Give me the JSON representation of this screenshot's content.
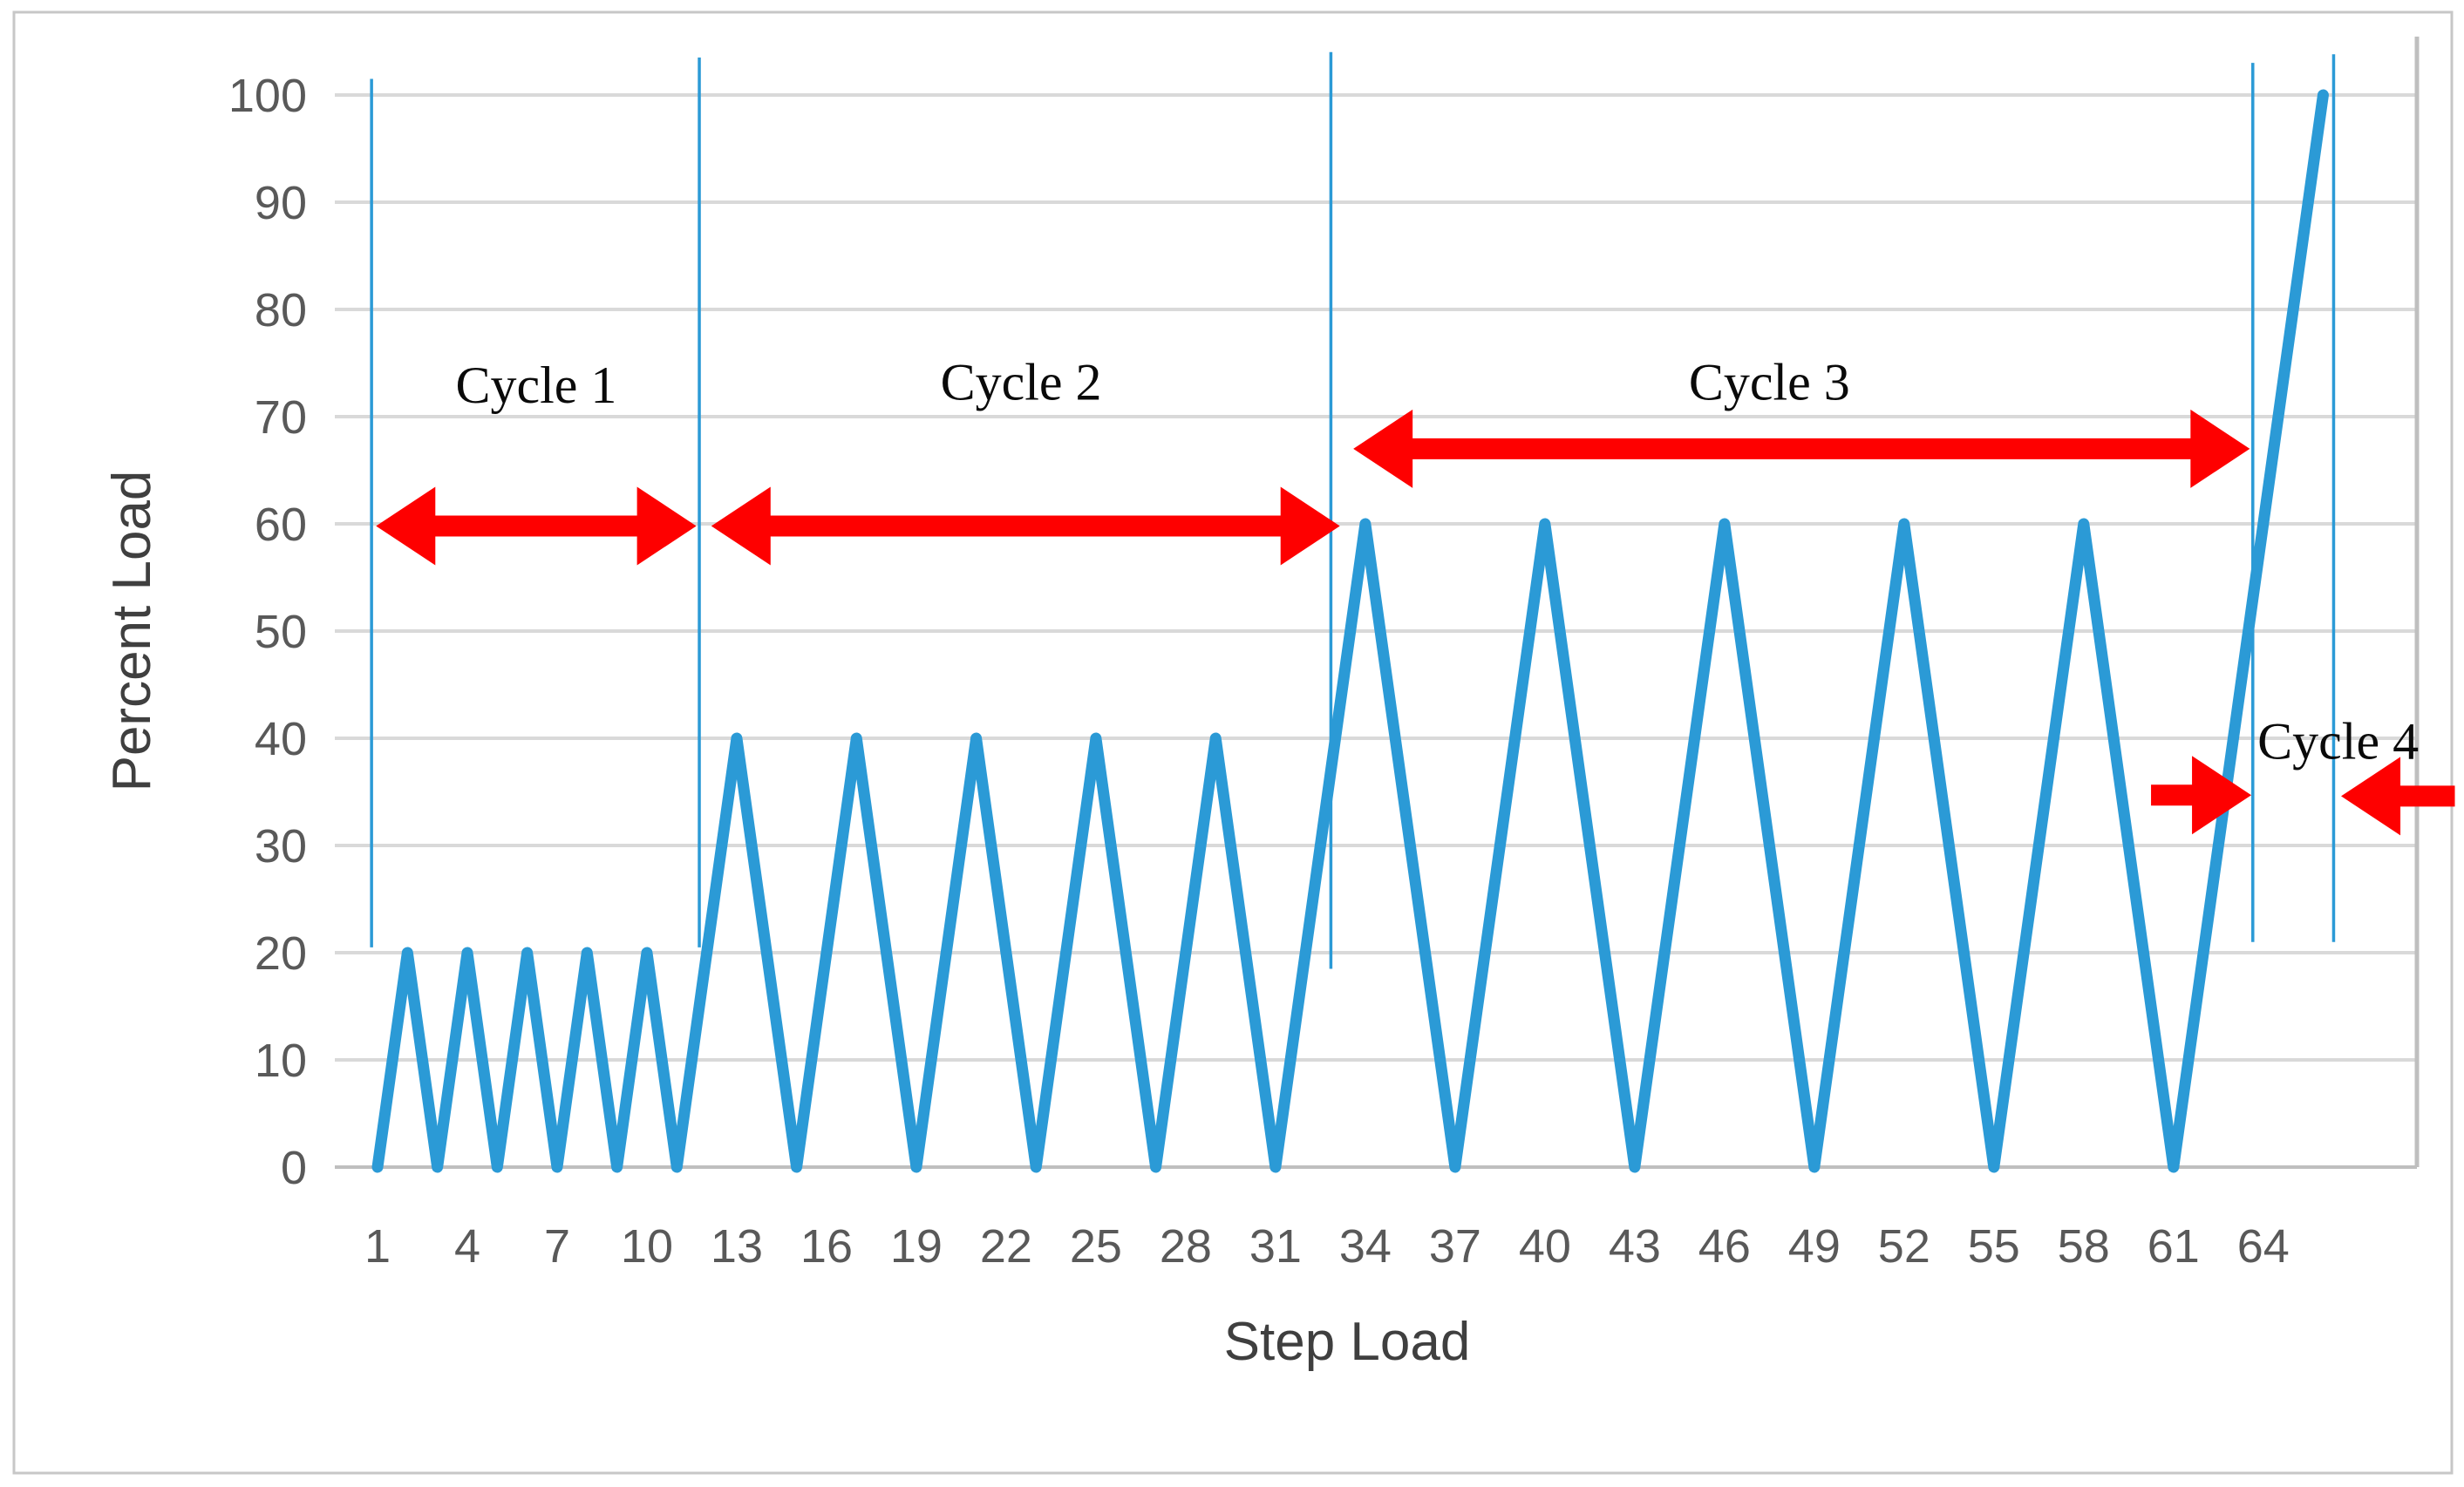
{
  "figure": {
    "background": "#ffffff",
    "frame_color": "#c7c7c7"
  },
  "chart_data": {
    "type": "line",
    "title": "",
    "xlabel": "Step Load",
    "ylabel": "Percent Load",
    "xlim": [
      1,
      66
    ],
    "ylim": [
      0,
      100
    ],
    "grid": "horizontal",
    "legend": "none",
    "x_tick_labels": [
      1,
      4,
      7,
      10,
      13,
      16,
      19,
      22,
      25,
      28,
      31,
      34,
      37,
      40,
      43,
      46,
      49,
      52,
      55,
      58,
      61,
      64
    ],
    "y_tick_labels": [
      0,
      10,
      20,
      30,
      40,
      50,
      60,
      70,
      80,
      90,
      100
    ],
    "series": [
      {
        "name": "percent-load-profile",
        "color": "#2b9ad6",
        "points": [
          [
            1,
            0
          ],
          [
            2,
            20
          ],
          [
            3,
            0
          ],
          [
            4,
            20
          ],
          [
            5,
            0
          ],
          [
            6,
            20
          ],
          [
            7,
            0
          ],
          [
            8,
            20
          ],
          [
            9,
            0
          ],
          [
            10,
            20
          ],
          [
            11,
            0
          ],
          [
            13,
            40
          ],
          [
            15,
            0
          ],
          [
            17,
            40
          ],
          [
            19,
            0
          ],
          [
            21,
            40
          ],
          [
            23,
            0
          ],
          [
            25,
            40
          ],
          [
            27,
            0
          ],
          [
            29,
            40
          ],
          [
            31,
            0
          ],
          [
            34,
            60
          ],
          [
            37,
            0
          ],
          [
            40,
            60
          ],
          [
            43,
            0
          ],
          [
            46,
            60
          ],
          [
            49,
            0
          ],
          [
            52,
            60
          ],
          [
            55,
            0
          ],
          [
            58,
            60
          ],
          [
            61,
            0
          ],
          [
            66,
            100
          ]
        ]
      }
    ],
    "cycle_separators": {
      "color": "#2b9ad6",
      "lines": [
        {
          "x_step": 0.8,
          "y_top_pct": 101.5,
          "y_bottom_pct": 20.5
        },
        {
          "x_step": 11.75,
          "y_top_pct": 103.5,
          "y_bottom_pct": 20.5
        },
        {
          "x_step": 32.85,
          "y_top_pct": 104.0,
          "y_bottom_pct": 18.5
        },
        {
          "x_step": 63.65,
          "y_top_pct": 103.0,
          "y_bottom_pct": 21.0
        },
        {
          "x_step": 66.35,
          "y_top_pct": 103.8,
          "y_bottom_pct": 21.0
        }
      ]
    },
    "cycle_labels": [
      {
        "text": "Cycle 1",
        "x_step": 6.3,
        "y_pct": 73.0
      },
      {
        "text": "Cycle 2",
        "x_step": 22.5,
        "y_pct": 73.3
      },
      {
        "text": "Cycle 3",
        "x_step": 47.5,
        "y_pct": 73.3
      },
      {
        "text": "Cycle 4",
        "x_step": 66.5,
        "y_pct": 39.8
      }
    ],
    "arrows": {
      "color": "#fe0000",
      "items": [
        {
          "name": "cycle-1-extent-arrow",
          "x1_step": 0.95,
          "x2_step": 11.65,
          "y_pct": 59.8,
          "heads": "both"
        },
        {
          "name": "cycle-2-extent-arrow",
          "x1_step": 12.15,
          "x2_step": 33.15,
          "y_pct": 59.8,
          "heads": "both"
        },
        {
          "name": "cycle-3-extent-arrow",
          "x1_step": 33.6,
          "x2_step": 63.55,
          "y_pct": 67.0,
          "heads": "both"
        },
        {
          "name": "cycle-4-left-arrow",
          "x1_step": 60.25,
          "x2_step": 63.6,
          "y_pct": 34.7,
          "heads": "right"
        },
        {
          "name": "cycle-4-right-arrow",
          "x1_step": 66.6,
          "x2_step": 70.4,
          "y_pct": 34.6,
          "heads": "left"
        }
      ]
    },
    "style": {
      "series_stroke_width": 13,
      "separator_stroke_width": 3.5,
      "gridline_color": "#d9d9d9",
      "axis_line_color": "#bfbfbf",
      "tick_text_color": "#595959",
      "axis_title_color": "#3f3f3f",
      "cycle_text_color": "#0a0a0a"
    }
  }
}
